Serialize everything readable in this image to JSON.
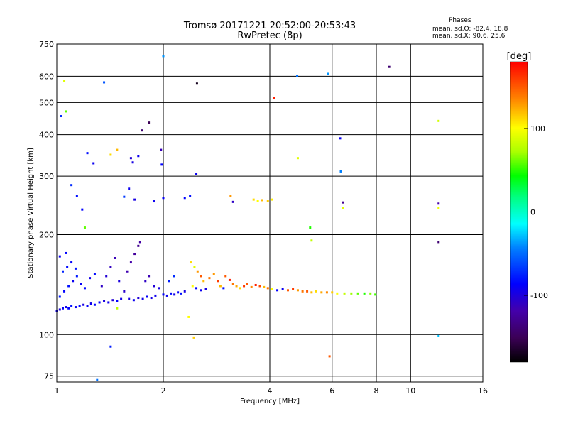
{
  "header": {
    "title_line1": "Tromsø 20171221 20:52:00-20:53:43",
    "title_line2": "RwPretec (8p)",
    "phase_heading": "Phases",
    "phase_o": "mean, sd,O: -82.4, 18.8",
    "phase_x": "mean, sd,X:  90.6, 25.6"
  },
  "colorbar": {
    "unit": "[deg]",
    "ticks": [
      {
        "value": 100,
        "label": "100"
      },
      {
        "value": 0,
        "label": "0"
      },
      {
        "value": -100,
        "label": "-100"
      }
    ],
    "range": [
      -180,
      180
    ]
  },
  "chart_data": {
    "type": "scatter",
    "xlabel": "Frequency [MHz]",
    "ylabel": "Stationary phase Virtual Height [km]",
    "x_scale": "log2",
    "y_scale": "log",
    "xlim": [
      1,
      16
    ],
    "ylim": [
      72,
      750
    ],
    "x_ticks": [
      {
        "value": 1,
        "label": "1"
      },
      {
        "value": 2,
        "label": "2"
      },
      {
        "value": 4,
        "label": "4"
      },
      {
        "value": 6,
        "label": "6"
      },
      {
        "value": 8,
        "label": "8"
      },
      {
        "value": 10,
        "label": "10"
      },
      {
        "value": 16,
        "label": "16"
      }
    ],
    "y_ticks": [
      {
        "value": 75,
        "label": "75"
      },
      {
        "value": 100,
        "label": "100"
      },
      {
        "value": 200,
        "label": "200"
      },
      {
        "value": 300,
        "label": "300"
      },
      {
        "value": 400,
        "label": "400"
      },
      {
        "value": 500,
        "label": "500"
      },
      {
        "value": 600,
        "label": "600"
      },
      {
        "value": 750,
        "label": "750"
      }
    ],
    "grid": true,
    "points": [
      {
        "x": 1.0,
        "y": 118,
        "phase": -95
      },
      {
        "x": 1.02,
        "y": 119,
        "phase": -100
      },
      {
        "x": 1.04,
        "y": 120,
        "phase": -92
      },
      {
        "x": 1.06,
        "y": 121,
        "phase": -98
      },
      {
        "x": 1.08,
        "y": 120,
        "phase": -90
      },
      {
        "x": 1.1,
        "y": 122,
        "phase": -85
      },
      {
        "x": 1.13,
        "y": 121,
        "phase": -95
      },
      {
        "x": 1.16,
        "y": 122,
        "phase": -88
      },
      {
        "x": 1.19,
        "y": 123,
        "phase": -100
      },
      {
        "x": 1.22,
        "y": 122,
        "phase": -92
      },
      {
        "x": 1.25,
        "y": 124,
        "phase": -97
      },
      {
        "x": 1.28,
        "y": 123,
        "phase": -89
      },
      {
        "x": 1.02,
        "y": 130,
        "phase": -80
      },
      {
        "x": 1.05,
        "y": 135,
        "phase": -90
      },
      {
        "x": 1.08,
        "y": 140,
        "phase": -85
      },
      {
        "x": 1.11,
        "y": 145,
        "phase": -95
      },
      {
        "x": 1.14,
        "y": 150,
        "phase": -82
      },
      {
        "x": 1.17,
        "y": 142,
        "phase": -93
      },
      {
        "x": 1.2,
        "y": 138,
        "phase": -88
      },
      {
        "x": 1.04,
        "y": 155,
        "phase": -78
      },
      {
        "x": 1.07,
        "y": 160,
        "phase": -86
      },
      {
        "x": 1.1,
        "y": 165,
        "phase": -92
      },
      {
        "x": 1.13,
        "y": 158,
        "phase": -84
      },
      {
        "x": 1.02,
        "y": 172,
        "phase": -95
      },
      {
        "x": 1.06,
        "y": 176,
        "phase": -90
      },
      {
        "x": 1.24,
        "y": 148,
        "phase": -99
      },
      {
        "x": 1.28,
        "y": 152,
        "phase": -87
      },
      {
        "x": 1.32,
        "y": 125,
        "phase": -92
      },
      {
        "x": 1.36,
        "y": 126,
        "phase": -101
      },
      {
        "x": 1.4,
        "y": 125,
        "phase": -96
      },
      {
        "x": 1.44,
        "y": 127,
        "phase": -104
      },
      {
        "x": 1.48,
        "y": 126,
        "phase": -90
      },
      {
        "x": 1.52,
        "y": 128,
        "phase": -98
      },
      {
        "x": 1.34,
        "y": 140,
        "phase": -110
      },
      {
        "x": 1.38,
        "y": 150,
        "phase": -105
      },
      {
        "x": 1.42,
        "y": 160,
        "phase": -112
      },
      {
        "x": 1.46,
        "y": 170,
        "phase": -115
      },
      {
        "x": 1.5,
        "y": 145,
        "phase": -102
      },
      {
        "x": 1.55,
        "y": 135,
        "phase": -108
      },
      {
        "x": 1.58,
        "y": 155,
        "phase": -118
      },
      {
        "x": 1.62,
        "y": 165,
        "phase": -120
      },
      {
        "x": 1.66,
        "y": 175,
        "phase": -125
      },
      {
        "x": 1.7,
        "y": 185,
        "phase": -130
      },
      {
        "x": 1.72,
        "y": 190,
        "phase": -122
      },
      {
        "x": 1.6,
        "y": 128,
        "phase": -100
      },
      {
        "x": 1.65,
        "y": 127,
        "phase": -95
      },
      {
        "x": 1.7,
        "y": 129,
        "phase": -105
      },
      {
        "x": 1.75,
        "y": 128,
        "phase": -98
      },
      {
        "x": 1.8,
        "y": 130,
        "phase": -92
      },
      {
        "x": 1.85,
        "y": 129,
        "phase": -100
      },
      {
        "x": 1.9,
        "y": 131,
        "phase": -96
      },
      {
        "x": 1.78,
        "y": 145,
        "phase": -110
      },
      {
        "x": 1.82,
        "y": 150,
        "phase": -116
      },
      {
        "x": 1.88,
        "y": 140,
        "phase": -104
      },
      {
        "x": 1.95,
        "y": 138,
        "phase": -100
      },
      {
        "x": 2.0,
        "y": 132,
        "phase": -90
      },
      {
        "x": 2.05,
        "y": 131,
        "phase": -95
      },
      {
        "x": 2.1,
        "y": 133,
        "phase": -88
      },
      {
        "x": 2.15,
        "y": 132,
        "phase": -98
      },
      {
        "x": 2.2,
        "y": 134,
        "phase": -92
      },
      {
        "x": 2.25,
        "y": 133,
        "phase": -85
      },
      {
        "x": 2.3,
        "y": 135,
        "phase": -100
      },
      {
        "x": 2.08,
        "y": 145,
        "phase": -80
      },
      {
        "x": 2.14,
        "y": 150,
        "phase": -75
      },
      {
        "x": 2.4,
        "y": 165,
        "phase": 110
      },
      {
        "x": 2.45,
        "y": 160,
        "phase": 90
      },
      {
        "x": 2.5,
        "y": 155,
        "phase": 130
      },
      {
        "x": 2.55,
        "y": 150,
        "phase": 150
      },
      {
        "x": 2.6,
        "y": 145,
        "phase": 120
      },
      {
        "x": 2.42,
        "y": 140,
        "phase": 100
      },
      {
        "x": 2.48,
        "y": 138,
        "phase": -90
      },
      {
        "x": 2.56,
        "y": 136,
        "phase": -95
      },
      {
        "x": 2.64,
        "y": 137,
        "phase": -100
      },
      {
        "x": 2.7,
        "y": 148,
        "phase": 140
      },
      {
        "x": 2.78,
        "y": 152,
        "phase": 130
      },
      {
        "x": 2.85,
        "y": 145,
        "phase": 160
      },
      {
        "x": 2.9,
        "y": 140,
        "phase": 120
      },
      {
        "x": 2.96,
        "y": 138,
        "phase": -85
      },
      {
        "x": 3.0,
        "y": 150,
        "phase": 150
      },
      {
        "x": 3.08,
        "y": 146,
        "phase": 170
      },
      {
        "x": 3.15,
        "y": 142,
        "phase": 140
      },
      {
        "x": 3.22,
        "y": 140,
        "phase": 125
      },
      {
        "x": 3.3,
        "y": 138,
        "phase": 110
      },
      {
        "x": 3.38,
        "y": 140,
        "phase": 160
      },
      {
        "x": 3.45,
        "y": 142,
        "phase": 150
      },
      {
        "x": 3.55,
        "y": 139,
        "phase": 135
      },
      {
        "x": 3.65,
        "y": 141,
        "phase": 170
      },
      {
        "x": 3.75,
        "y": 140,
        "phase": 155
      },
      {
        "x": 3.85,
        "y": 139,
        "phase": 120
      },
      {
        "x": 3.95,
        "y": 138,
        "phase": 140
      },
      {
        "x": 4.05,
        "y": 137,
        "phase": 100
      },
      {
        "x": 4.2,
        "y": 136,
        "phase": -90
      },
      {
        "x": 4.35,
        "y": 137,
        "phase": -95
      },
      {
        "x": 4.5,
        "y": 136,
        "phase": 150
      },
      {
        "x": 4.65,
        "y": 137,
        "phase": 160
      },
      {
        "x": 4.8,
        "y": 136,
        "phase": 130
      },
      {
        "x": 4.95,
        "y": 135,
        "phase": 140
      },
      {
        "x": 5.1,
        "y": 135,
        "phase": 150
      },
      {
        "x": 5.25,
        "y": 134,
        "phase": 120
      },
      {
        "x": 5.4,
        "y": 135,
        "phase": 110
      },
      {
        "x": 5.6,
        "y": 134,
        "phase": 125
      },
      {
        "x": 5.8,
        "y": 134,
        "phase": 135
      },
      {
        "x": 6.0,
        "y": 134,
        "phase": 115
      },
      {
        "x": 6.2,
        "y": 133,
        "phase": 100
      },
      {
        "x": 6.5,
        "y": 133,
        "phase": 80
      },
      {
        "x": 6.8,
        "y": 133,
        "phase": 70
      },
      {
        "x": 7.1,
        "y": 133,
        "phase": 60
      },
      {
        "x": 7.4,
        "y": 133,
        "phase": 50
      },
      {
        "x": 7.7,
        "y": 133,
        "phase": 65
      },
      {
        "x": 7.95,
        "y": 132,
        "phase": 55
      },
      {
        "x": 1.03,
        "y": 455,
        "phase": -75
      },
      {
        "x": 1.05,
        "y": 580,
        "phase": 90
      },
      {
        "x": 1.06,
        "y": 470,
        "phase": 60
      },
      {
        "x": 1.36,
        "y": 575,
        "phase": -60
      },
      {
        "x": 1.22,
        "y": 352,
        "phase": -85
      },
      {
        "x": 1.27,
        "y": 328,
        "phase": -95
      },
      {
        "x": 1.42,
        "y": 348,
        "phase": 110
      },
      {
        "x": 1.48,
        "y": 360,
        "phase": 120
      },
      {
        "x": 1.62,
        "y": 340,
        "phase": -105
      },
      {
        "x": 1.64,
        "y": 330,
        "phase": -100
      },
      {
        "x": 1.7,
        "y": 345,
        "phase": -95
      },
      {
        "x": 1.74,
        "y": 412,
        "phase": -140
      },
      {
        "x": 1.82,
        "y": 435,
        "phase": -150
      },
      {
        "x": 1.97,
        "y": 360,
        "phase": -115
      },
      {
        "x": 1.98,
        "y": 325,
        "phase": -90
      },
      {
        "x": 2.48,
        "y": 305,
        "phase": -95
      },
      {
        "x": 2.49,
        "y": 570,
        "phase": -170
      },
      {
        "x": 4.12,
        "y": 515,
        "phase": 170
      },
      {
        "x": 4.78,
        "y": 600,
        "phase": -50
      },
      {
        "x": 5.85,
        "y": 610,
        "phase": -40
      },
      {
        "x": 6.32,
        "y": 390,
        "phase": -95
      },
      {
        "x": 6.35,
        "y": 310,
        "phase": -45
      },
      {
        "x": 6.45,
        "y": 250,
        "phase": -130
      },
      {
        "x": 8.7,
        "y": 640,
        "phase": -140
      },
      {
        "x": 12.0,
        "y": 440,
        "phase": 85
      },
      {
        "x": 12.0,
        "y": 248,
        "phase": -120
      },
      {
        "x": 12.0,
        "y": 240,
        "phase": 95
      },
      {
        "x": 12.0,
        "y": 190,
        "phase": -140
      },
      {
        "x": 4.8,
        "y": 340,
        "phase": 90
      },
      {
        "x": 5.2,
        "y": 210,
        "phase": 50
      },
      {
        "x": 5.25,
        "y": 192,
        "phase": 80
      },
      {
        "x": 3.6,
        "y": 255,
        "phase": 110
      },
      {
        "x": 3.7,
        "y": 253,
        "phase": 100
      },
      {
        "x": 3.8,
        "y": 254,
        "phase": 120
      },
      {
        "x": 3.95,
        "y": 253,
        "phase": 115
      },
      {
        "x": 4.05,
        "y": 255,
        "phase": 105
      },
      {
        "x": 3.1,
        "y": 262,
        "phase": 130
      },
      {
        "x": 3.15,
        "y": 251,
        "phase": -110
      },
      {
        "x": 2.3,
        "y": 258,
        "phase": -90
      },
      {
        "x": 2.38,
        "y": 262,
        "phase": -85
      },
      {
        "x": 1.55,
        "y": 260,
        "phase": -70
      },
      {
        "x": 1.6,
        "y": 275,
        "phase": -95
      },
      {
        "x": 1.1,
        "y": 282,
        "phase": -75
      },
      {
        "x": 1.14,
        "y": 262,
        "phase": -85
      },
      {
        "x": 1.18,
        "y": 238,
        "phase": -90
      },
      {
        "x": 1.2,
        "y": 210,
        "phase": 60
      },
      {
        "x": 1.66,
        "y": 255,
        "phase": -100
      },
      {
        "x": 1.88,
        "y": 252,
        "phase": -95
      },
      {
        "x": 2.0,
        "y": 258,
        "phase": -92
      },
      {
        "x": 6.45,
        "y": 240,
        "phase": 90
      },
      {
        "x": 1.48,
        "y": 120,
        "phase": 80
      },
      {
        "x": 1.3,
        "y": 73,
        "phase": -50
      },
      {
        "x": 1.42,
        "y": 92,
        "phase": -80
      },
      {
        "x": 2.36,
        "y": 113,
        "phase": 100
      },
      {
        "x": 2.44,
        "y": 98,
        "phase": 115
      },
      {
        "x": 5.9,
        "y": 86,
        "phase": 150
      },
      {
        "x": 12.0,
        "y": 99,
        "phase": -30
      },
      {
        "x": 2.0,
        "y": 690,
        "phase": -40
      }
    ]
  }
}
